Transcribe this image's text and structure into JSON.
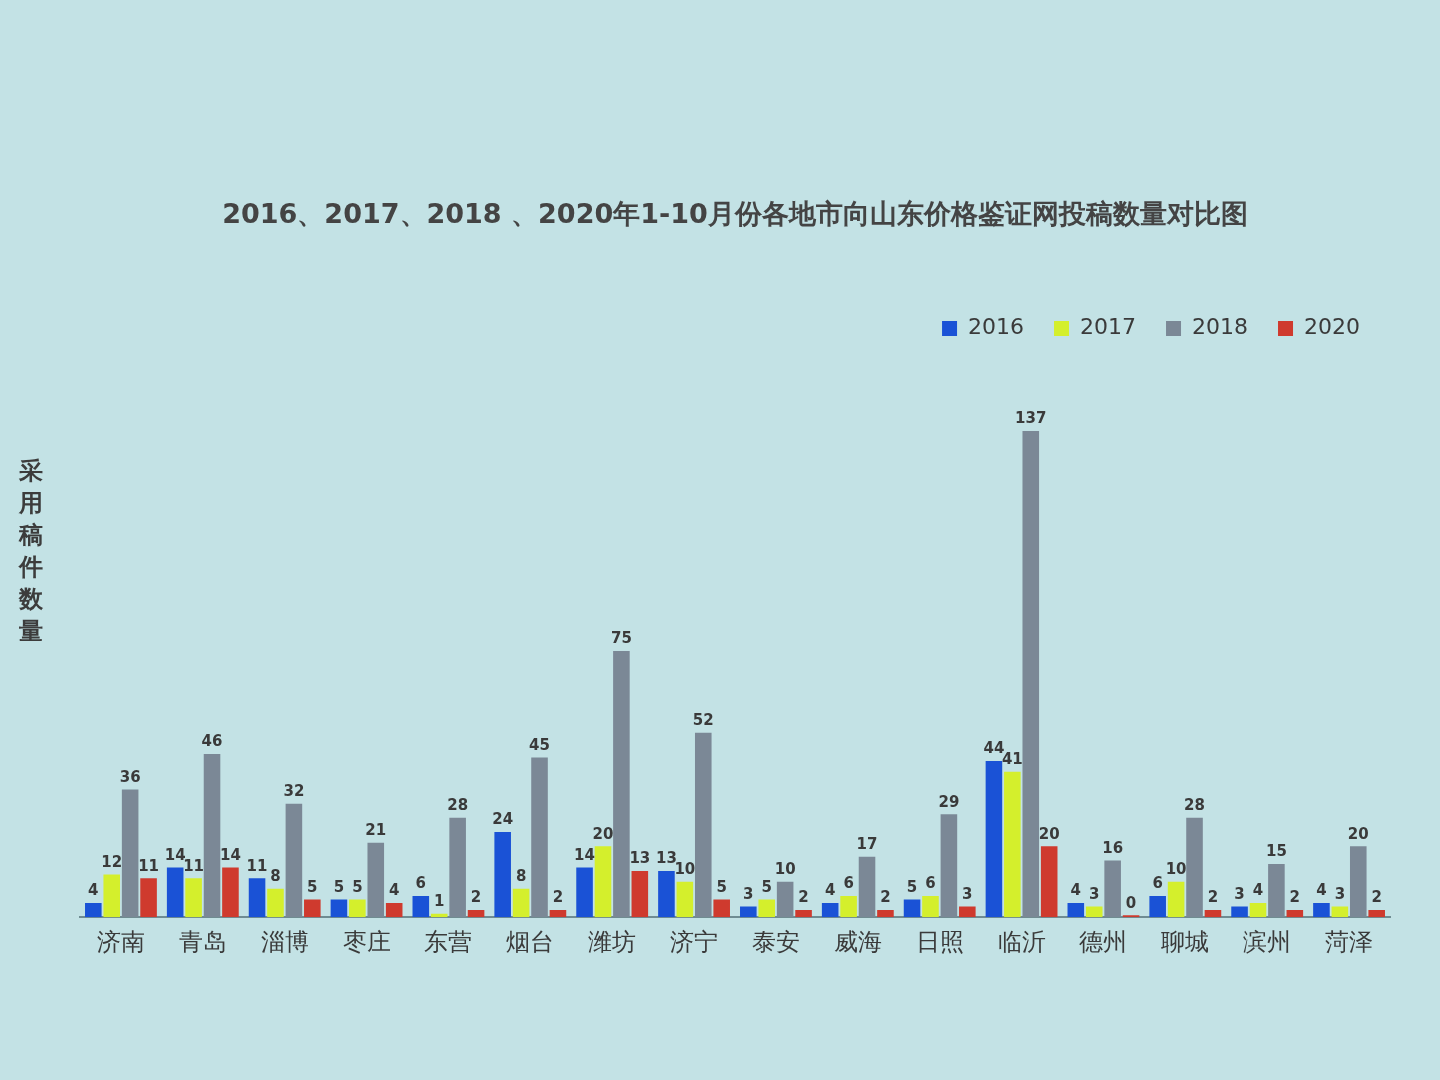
{
  "chart_data": {
    "type": "bar",
    "title": "2016、2017、2018 、2020年1-10月份各地市向山东价格鉴证网投稿数量对比图",
    "ylabel": "采用稿件数量",
    "categories": [
      "济南",
      "青岛",
      "淄博",
      "枣庄",
      "东营",
      "烟台",
      "潍坊",
      "济宁",
      "泰安",
      "威海",
      "日照",
      "临沂",
      "德州",
      "聊城",
      "滨州",
      "菏泽"
    ],
    "series": [
      {
        "name": "2016",
        "color": "#1a52d6",
        "values": [
          4,
          14,
          11,
          5,
          6,
          24,
          14,
          13,
          3,
          4,
          5,
          44,
          4,
          6,
          3,
          4
        ]
      },
      {
        "name": "2017",
        "color": "#d4ef2c",
        "values": [
          12,
          11,
          8,
          5,
          1,
          8,
          20,
          10,
          5,
          6,
          6,
          41,
          3,
          10,
          4,
          3
        ]
      },
      {
        "name": "2018",
        "color": "#7b8896",
        "values": [
          36,
          46,
          32,
          21,
          28,
          45,
          75,
          52,
          10,
          17,
          29,
          137,
          16,
          28,
          15,
          20
        ]
      },
      {
        "name": "2020",
        "color": "#cf3a2e",
        "values": [
          11,
          14,
          5,
          4,
          2,
          2,
          13,
          5,
          2,
          2,
          3,
          20,
          0,
          2,
          2,
          2
        ]
      }
    ],
    "data_labels": true,
    "grid": false,
    "legend": "top right"
  }
}
